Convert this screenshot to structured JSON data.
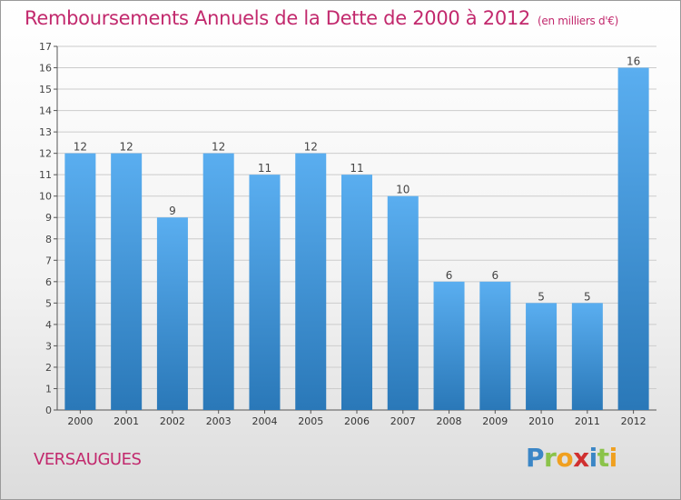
{
  "title": "Remboursements Annuels de la Dette de 2000 à 2012",
  "subtitle": "(en milliers d'€)",
  "commune": "VERSAUGUES",
  "logo": {
    "letters": [
      "P",
      "r",
      "o",
      "x",
      "i",
      "t",
      "i"
    ],
    "colors": [
      "#3b86c6",
      "#8bc34a",
      "#f0a020",
      "#d03030",
      "#3b86c6",
      "#8bc34a",
      "#f0a020"
    ]
  },
  "colors": {
    "bar": "#3a8fd1",
    "bar_light": "#5aaef0",
    "title": "#c2296d",
    "grid": "#cccccc"
  },
  "chart_data": {
    "type": "bar",
    "title": "Remboursements Annuels de la Dette de 2000 à 2012",
    "subtitle": "(en milliers d'€)",
    "xlabel": "",
    "ylabel": "",
    "categories": [
      "2000",
      "2001",
      "2002",
      "2003",
      "2004",
      "2005",
      "2006",
      "2007",
      "2008",
      "2009",
      "2010",
      "2011",
      "2012"
    ],
    "values": [
      12,
      12,
      9,
      12,
      11,
      12,
      11,
      10,
      6,
      6,
      5,
      5,
      16
    ],
    "ylim": [
      0,
      17
    ],
    "yticks": [
      "0",
      "1",
      "2",
      "3",
      "4",
      "5",
      "6",
      "7",
      "8",
      "9",
      "10",
      "11",
      "12",
      "13",
      "14",
      "15",
      "16",
      "17"
    ],
    "grid": true,
    "legend": "none"
  }
}
